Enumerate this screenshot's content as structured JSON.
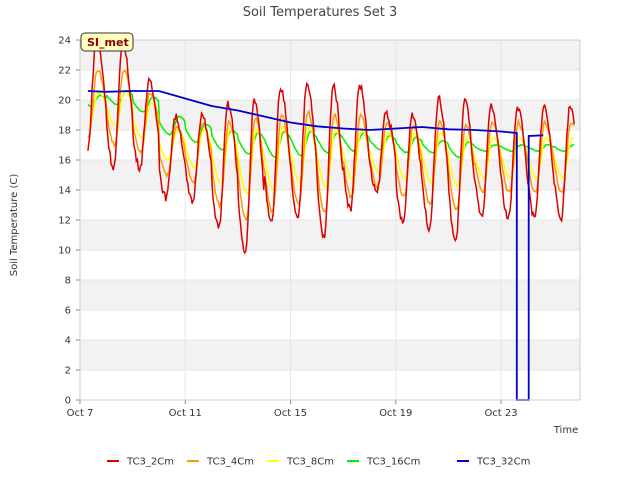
{
  "chart_data": {
    "type": "line",
    "title": "Soil Temperatures Set 3",
    "xlabel": "Time",
    "ylabel": "Soil Temperature (C)",
    "site_label": "SI_met",
    "ylim": [
      0,
      24
    ],
    "yticks": [
      0,
      2,
      4,
      6,
      8,
      10,
      12,
      14,
      16,
      18,
      20,
      22,
      24
    ],
    "xlim": [
      0,
      19
    ],
    "x_unit": "days since Oct 7",
    "xtick_labels": [
      "Oct 7",
      "Oct 11",
      "Oct 15",
      "Oct 19",
      "Oct 23"
    ],
    "xtick_values": [
      0,
      4,
      8,
      12,
      16
    ],
    "grid": true,
    "legend_position": "bottom",
    "series": [
      {
        "name": "TC3_2Cm",
        "color": "#dd0000",
        "mins": [
          16.5,
          15.5,
          15.5,
          13.5,
          13.2,
          11.5,
          9.8,
          12.0,
          12.0,
          10.8,
          12.7,
          13.8,
          11.8,
          11.5,
          10.6,
          12.1
        ],
        "maxs": [
          24.0,
          23.7,
          21.2,
          18.9,
          19.0,
          19.7,
          20.0,
          20.8,
          21.2,
          21.0,
          21.0,
          19.2,
          19.1,
          20.1,
          20.0,
          19.6
        ]
      },
      {
        "name": "TC3_4Cm",
        "color": "#ff9900",
        "mins": [
          17.5,
          17.0,
          16.5,
          15.0,
          14.5,
          13.0,
          12.0,
          12.5,
          13.0,
          12.5,
          13.5,
          14.2,
          13.5,
          13.0,
          12.7,
          13.8
        ],
        "maxs": [
          22.0,
          22.0,
          20.5,
          18.3,
          18.5,
          18.5,
          18.8,
          19.0,
          19.2,
          19.0,
          19.0,
          18.5,
          18.3,
          18.5,
          18.3,
          18.5
        ]
      },
      {
        "name": "TC3_8Cm",
        "color": "#ffff00",
        "mins": [
          18.5,
          18.3,
          17.5,
          16.0,
          15.5,
          14.5,
          13.8,
          14.0,
          14.5,
          14.2,
          14.7,
          15.2,
          14.8,
          14.5,
          14.3,
          14.8
        ],
        "maxs": [
          20.5,
          20.6,
          19.8,
          18.0,
          18.0,
          18.0,
          18.0,
          18.2,
          18.2,
          18.0,
          18.0,
          17.8,
          17.8,
          17.8,
          17.5,
          17.5
        ]
      },
      {
        "name": "TC3_16Cm",
        "color": "#00ee00",
        "mins": [
          19.6,
          19.7,
          19.2,
          17.7,
          17.2,
          16.7,
          16.4,
          16.2,
          16.3,
          16.5,
          16.6,
          16.7,
          16.5,
          16.5,
          16.2,
          16.6
        ],
        "maxs": [
          20.3,
          20.6,
          20.2,
          18.9,
          18.4,
          18.0,
          17.8,
          17.9,
          17.9,
          17.8,
          17.8,
          17.6,
          17.5,
          17.3,
          17.2,
          17.0
        ]
      }
    ],
    "series_32cm": {
      "name": "TC3_32Cm",
      "color": "#0000cc",
      "x": [
        0.3,
        1.0,
        2.0,
        3.0,
        4.0,
        5.0,
        6.0,
        7.0,
        8.0,
        9.0,
        10.0,
        11.0,
        12.0,
        13.0,
        14.0,
        15.0,
        16.0,
        16.6,
        16.6,
        17.05,
        17.05,
        17.6
      ],
      "y": [
        20.6,
        20.55,
        20.6,
        20.6,
        20.1,
        19.6,
        19.3,
        18.9,
        18.5,
        18.25,
        18.1,
        18.0,
        18.1,
        18.2,
        18.05,
        18.0,
        17.9,
        17.8,
        0,
        0,
        17.6,
        17.65
      ]
    }
  }
}
